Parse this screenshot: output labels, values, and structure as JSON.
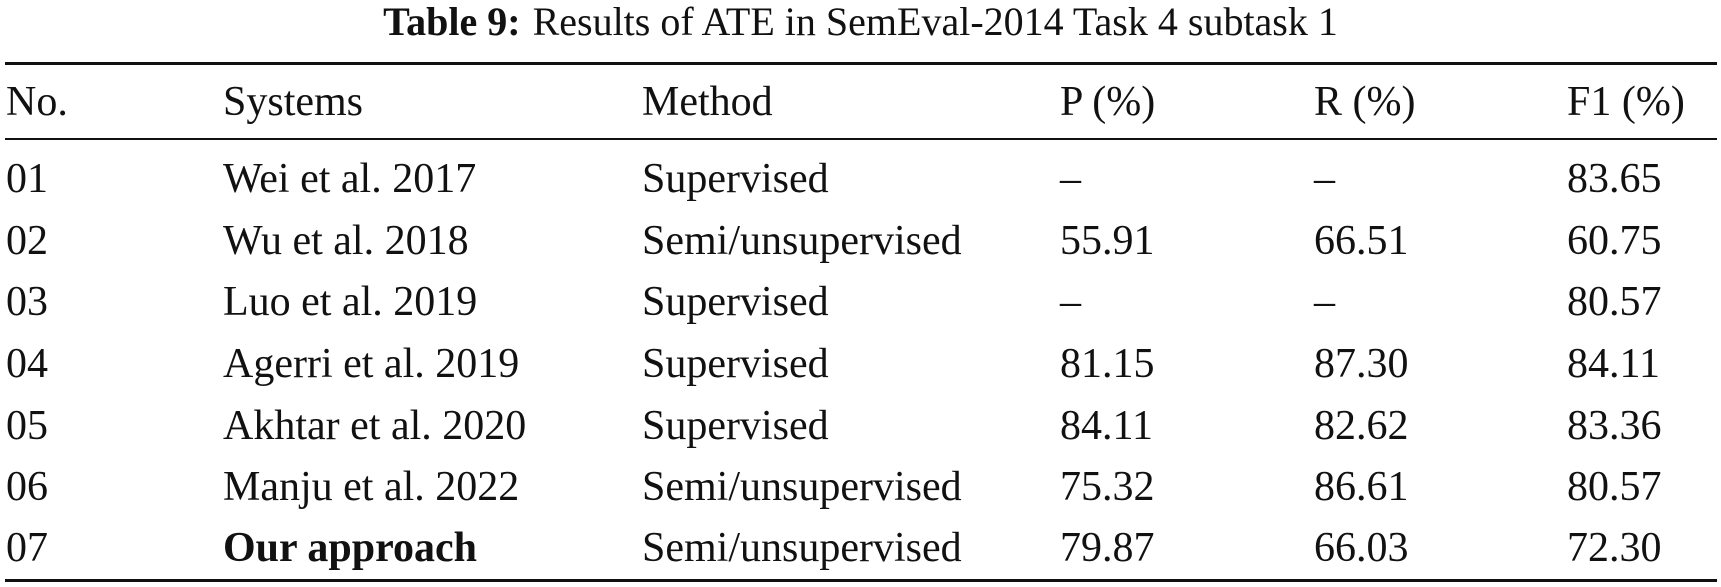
{
  "caption": {
    "label": "Table 9:",
    "text": "Results of ATE in SemEval-2014 Task 4 subtask 1"
  },
  "table": {
    "header": [
      "No.",
      "Systems",
      "Method",
      "P (%)",
      "R (%)",
      "F1 (%)"
    ],
    "rows": [
      [
        "01",
        "Wei et al. 2017",
        "Supervised",
        "–",
        "–",
        "83.65"
      ],
      [
        "02",
        "Wu et al. 2018",
        "Semi/unsupervised",
        "55.91",
        "66.51",
        "60.75"
      ],
      [
        "03",
        "Luo et al. 2019",
        "Supervised",
        "–",
        "–",
        "80.57"
      ],
      [
        "04",
        "Agerri et al. 2019",
        "Supervised",
        "81.15",
        "87.30",
        "84.11"
      ],
      [
        "05",
        "Akhtar et al. 2020",
        "Supervised",
        "84.11",
        "82.62",
        "83.36"
      ],
      [
        "06",
        "Manju et al. 2022",
        "Semi/unsupervised",
        "75.32",
        "86.61",
        "80.57"
      ],
      [
        "07",
        "Our approach",
        "Semi/unsupervised",
        "79.87",
        "66.03",
        "72.30"
      ]
    ]
  }
}
